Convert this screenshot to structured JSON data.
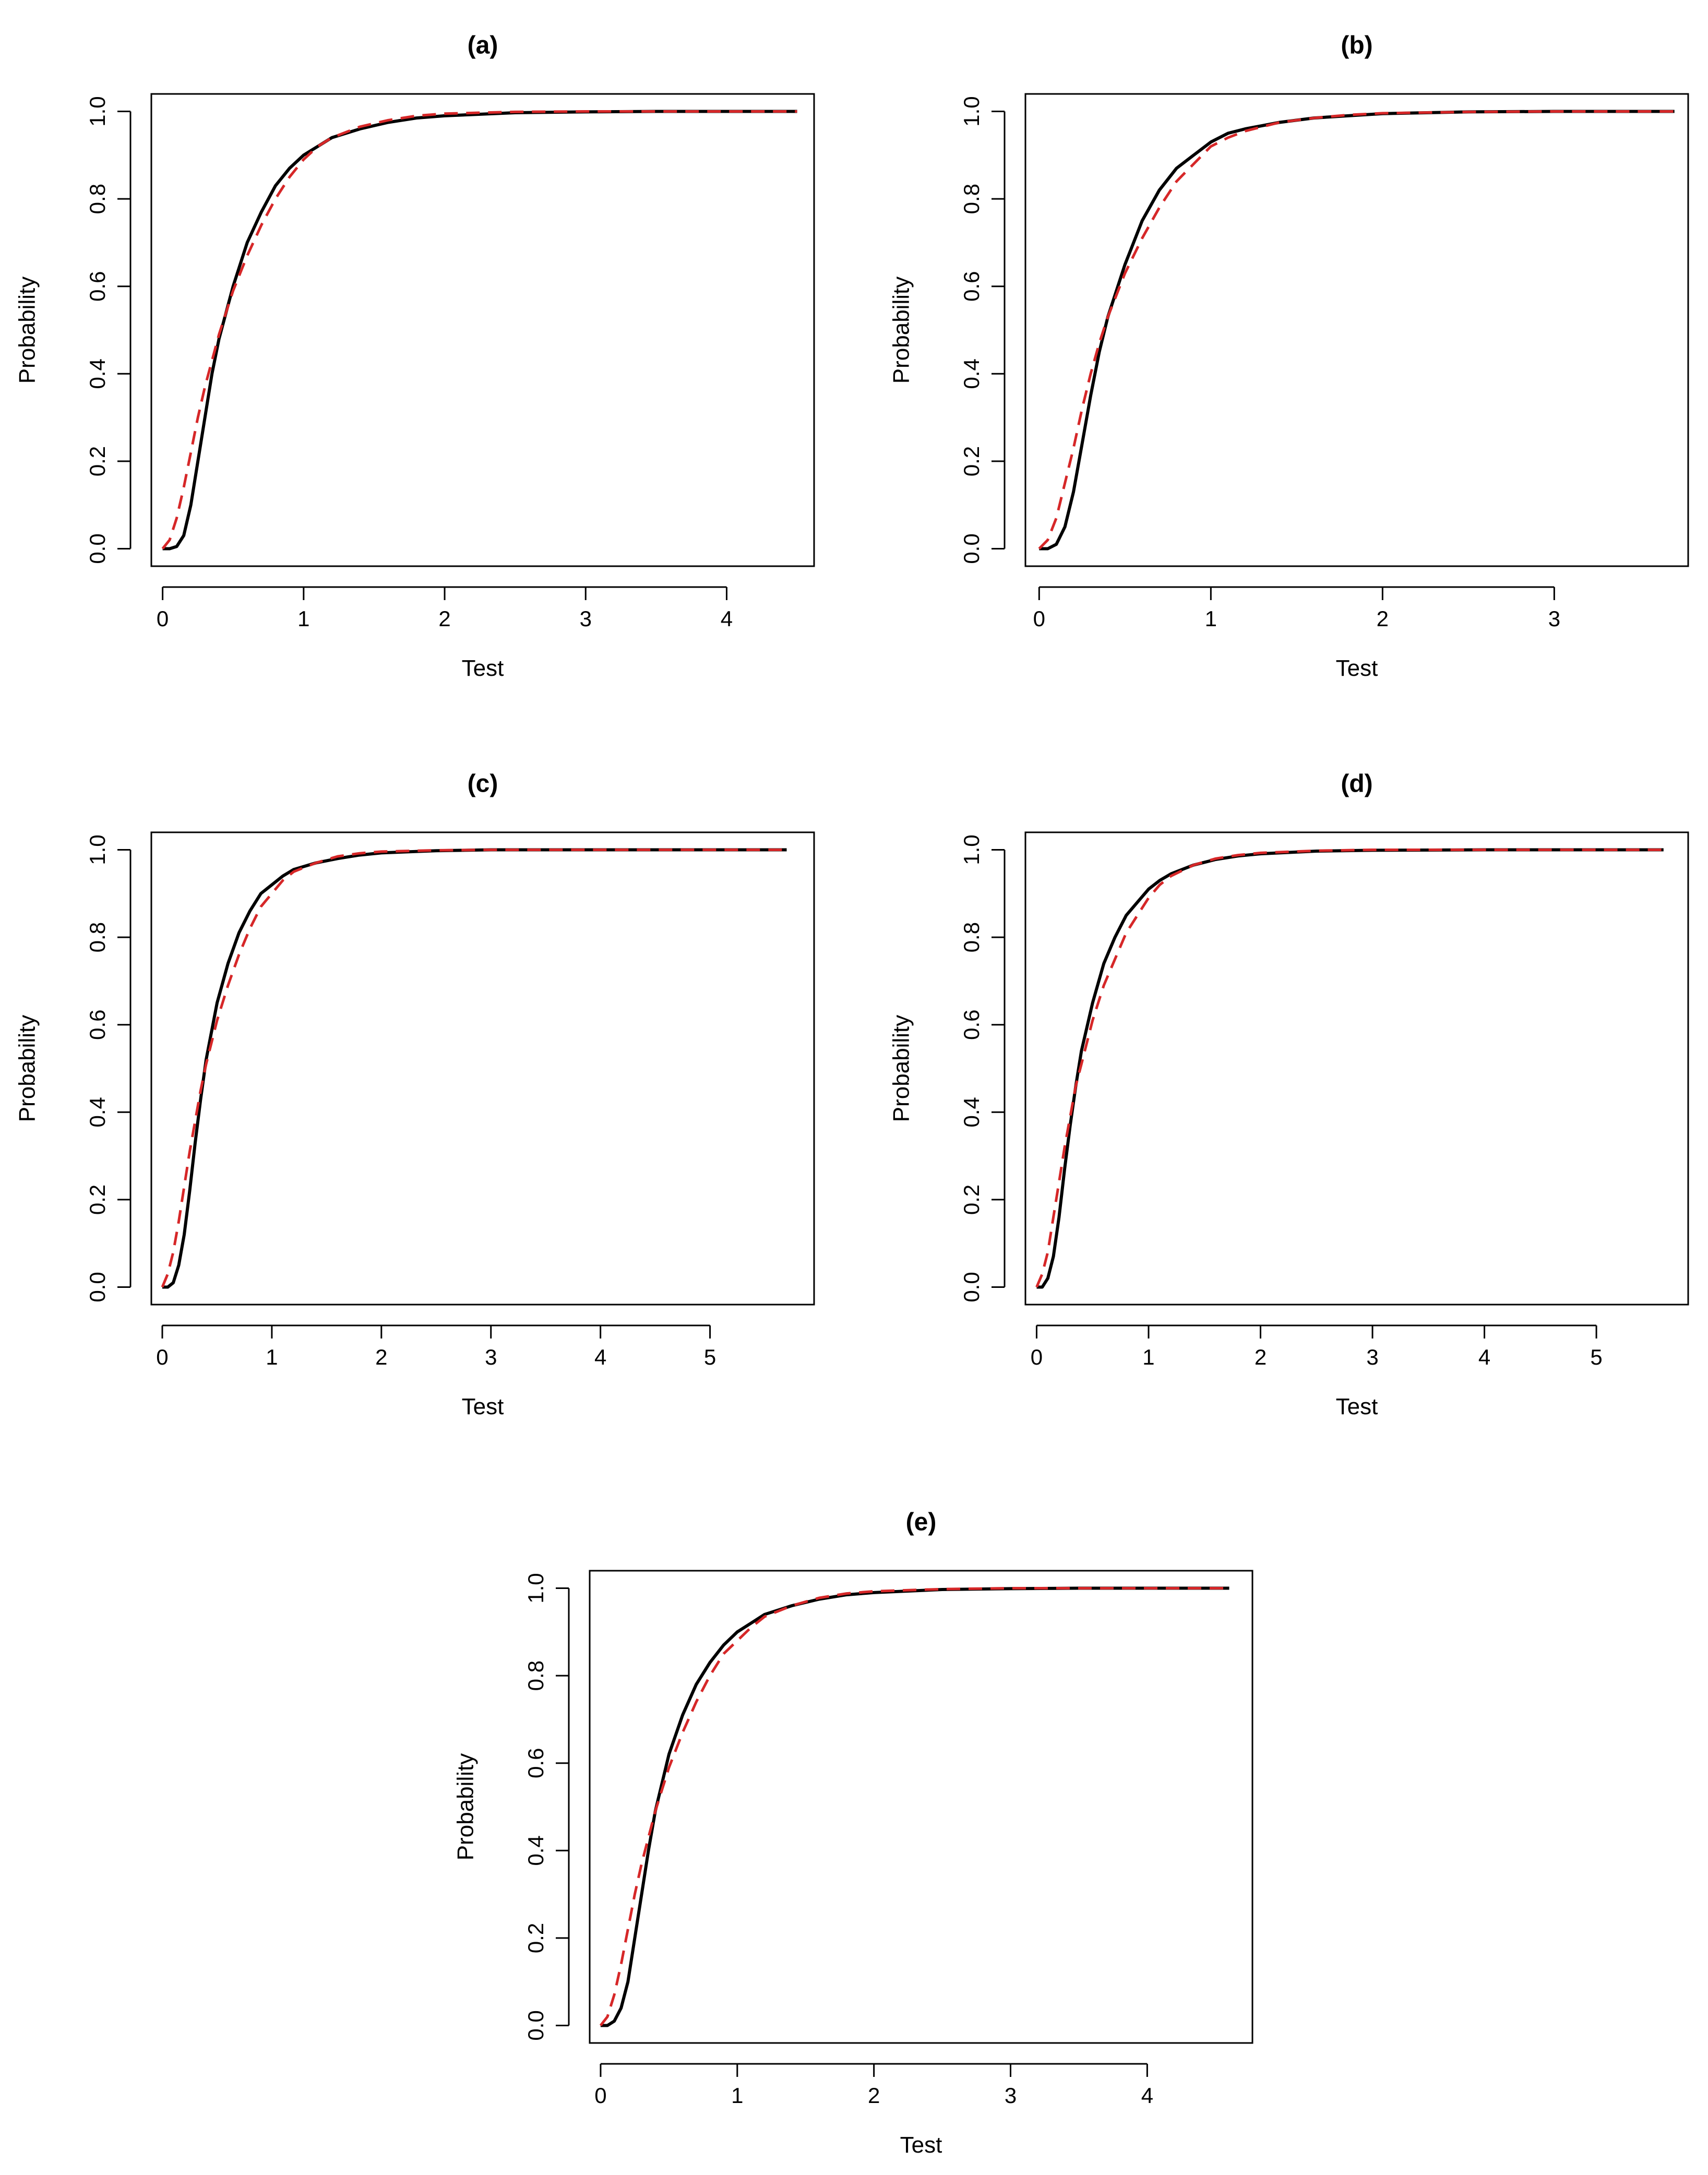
{
  "figure": {
    "colors": {
      "empirical": "#000000",
      "fitted": "#d62728"
    }
  },
  "chart_data": [
    {
      "type": "line",
      "title": "(a)",
      "xlabel": "Test",
      "ylabel": "Probability",
      "xlim": [
        -0.08,
        4.62
      ],
      "ylim": [
        -0.04,
        1.04
      ],
      "xticks": [
        0,
        1,
        2,
        3,
        4
      ],
      "yticks": [
        0.0,
        0.2,
        0.4,
        0.6,
        0.8,
        1.0
      ],
      "grid": false,
      "series": [
        {
          "style": "solid",
          "color": "#000000",
          "x": [
            0,
            0.05,
            0.1,
            0.15,
            0.2,
            0.25,
            0.3,
            0.35,
            0.4,
            0.5,
            0.6,
            0.7,
            0.8,
            0.9,
            1.0,
            1.1,
            1.2,
            1.4,
            1.6,
            1.8,
            2.0,
            2.5,
            3.0,
            3.5,
            4.0,
            4.5
          ],
          "y": [
            0.0,
            0.0,
            0.005,
            0.03,
            0.1,
            0.2,
            0.3,
            0.4,
            0.48,
            0.6,
            0.7,
            0.77,
            0.83,
            0.87,
            0.9,
            0.92,
            0.94,
            0.96,
            0.975,
            0.985,
            0.99,
            0.997,
            0.999,
            1.0,
            1.0,
            1.0
          ]
        },
        {
          "style": "dashed",
          "color": "#d62728",
          "x": [
            0,
            0.05,
            0.1,
            0.15,
            0.2,
            0.25,
            0.3,
            0.35,
            0.4,
            0.5,
            0.6,
            0.7,
            0.8,
            0.9,
            1.0,
            1.1,
            1.2,
            1.4,
            1.6,
            1.8,
            2.0,
            2.5,
            3.0,
            3.5,
            4.0,
            4.5
          ],
          "y": [
            0.0,
            0.02,
            0.07,
            0.14,
            0.22,
            0.3,
            0.37,
            0.43,
            0.49,
            0.59,
            0.67,
            0.74,
            0.8,
            0.85,
            0.89,
            0.92,
            0.94,
            0.965,
            0.98,
            0.99,
            0.995,
            0.999,
            1.0,
            1.0,
            1.0,
            1.0
          ]
        }
      ]
    },
    {
      "type": "line",
      "title": "(b)",
      "xlabel": "Test",
      "ylabel": "Probability",
      "xlim": [
        -0.08,
        3.78
      ],
      "ylim": [
        -0.04,
        1.04
      ],
      "xticks": [
        0,
        1,
        2,
        3
      ],
      "yticks": [
        0.0,
        0.2,
        0.4,
        0.6,
        0.8,
        1.0
      ],
      "grid": false,
      "series": [
        {
          "style": "solid",
          "color": "#000000",
          "x": [
            0,
            0.05,
            0.1,
            0.15,
            0.2,
            0.25,
            0.3,
            0.35,
            0.4,
            0.5,
            0.6,
            0.7,
            0.8,
            0.9,
            1.0,
            1.1,
            1.2,
            1.4,
            1.6,
            1.8,
            2.0,
            2.5,
            3.0,
            3.5,
            3.7
          ],
          "y": [
            0.0,
            0.0,
            0.01,
            0.05,
            0.13,
            0.24,
            0.35,
            0.45,
            0.53,
            0.65,
            0.75,
            0.82,
            0.87,
            0.9,
            0.93,
            0.95,
            0.96,
            0.975,
            0.985,
            0.99,
            0.995,
            0.999,
            1.0,
            1.0,
            1.0
          ]
        },
        {
          "style": "dashed",
          "color": "#d62728",
          "x": [
            0,
            0.05,
            0.1,
            0.15,
            0.2,
            0.25,
            0.3,
            0.35,
            0.4,
            0.5,
            0.6,
            0.7,
            0.8,
            0.9,
            1.0,
            1.1,
            1.2,
            1.4,
            1.6,
            1.8,
            2.0,
            2.5,
            3.0,
            3.5,
            3.7
          ],
          "y": [
            0.0,
            0.02,
            0.07,
            0.15,
            0.23,
            0.32,
            0.4,
            0.47,
            0.53,
            0.63,
            0.71,
            0.78,
            0.84,
            0.88,
            0.92,
            0.94,
            0.955,
            0.975,
            0.985,
            0.992,
            0.996,
            0.999,
            1.0,
            1.0,
            1.0
          ]
        }
      ]
    },
    {
      "type": "line",
      "title": "(c)",
      "xlabel": "Test",
      "ylabel": "Probability",
      "xlim": [
        -0.1,
        5.95
      ],
      "ylim": [
        -0.04,
        1.04
      ],
      "xticks": [
        0,
        1,
        2,
        3,
        4,
        5
      ],
      "yticks": [
        0.0,
        0.2,
        0.4,
        0.6,
        0.8,
        1.0
      ],
      "grid": false,
      "series": [
        {
          "style": "solid",
          "color": "#000000",
          "x": [
            0,
            0.05,
            0.1,
            0.15,
            0.2,
            0.25,
            0.3,
            0.35,
            0.4,
            0.5,
            0.6,
            0.7,
            0.8,
            0.9,
            1.0,
            1.1,
            1.2,
            1.4,
            1.6,
            1.8,
            2.0,
            2.5,
            3.0,
            4.0,
            5.0,
            5.7
          ],
          "y": [
            0.0,
            0.0,
            0.01,
            0.05,
            0.12,
            0.22,
            0.33,
            0.43,
            0.52,
            0.65,
            0.74,
            0.81,
            0.86,
            0.9,
            0.92,
            0.94,
            0.955,
            0.97,
            0.98,
            0.988,
            0.993,
            0.998,
            1.0,
            1.0,
            1.0,
            1.0
          ]
        },
        {
          "style": "dashed",
          "color": "#d62728",
          "x": [
            0,
            0.05,
            0.1,
            0.15,
            0.2,
            0.25,
            0.3,
            0.35,
            0.4,
            0.5,
            0.6,
            0.7,
            0.8,
            0.9,
            1.0,
            1.1,
            1.2,
            1.4,
            1.6,
            1.8,
            2.0,
            2.5,
            3.0,
            4.0,
            5.0,
            5.7
          ],
          "y": [
            0.0,
            0.03,
            0.08,
            0.15,
            0.23,
            0.31,
            0.38,
            0.45,
            0.51,
            0.61,
            0.69,
            0.76,
            0.82,
            0.87,
            0.9,
            0.93,
            0.95,
            0.97,
            0.985,
            0.992,
            0.996,
            0.999,
            1.0,
            1.0,
            1.0,
            1.0
          ]
        }
      ]
    },
    {
      "type": "line",
      "title": "(d)",
      "xlabel": "Test",
      "ylabel": "Probability",
      "xlim": [
        -0.1,
        5.82
      ],
      "ylim": [
        -0.04,
        1.04
      ],
      "xticks": [
        0,
        1,
        2,
        3,
        4,
        5
      ],
      "yticks": [
        0.0,
        0.2,
        0.4,
        0.6,
        0.8,
        1.0
      ],
      "grid": false,
      "series": [
        {
          "style": "solid",
          "color": "#000000",
          "x": [
            0,
            0.05,
            0.1,
            0.15,
            0.2,
            0.25,
            0.3,
            0.35,
            0.4,
            0.5,
            0.6,
            0.7,
            0.8,
            0.9,
            1.0,
            1.1,
            1.2,
            1.4,
            1.6,
            1.8,
            2.0,
            2.5,
            3.0,
            4.0,
            5.0,
            5.6
          ],
          "y": [
            0.0,
            0.0,
            0.02,
            0.07,
            0.16,
            0.27,
            0.37,
            0.46,
            0.54,
            0.65,
            0.74,
            0.8,
            0.85,
            0.88,
            0.91,
            0.93,
            0.945,
            0.965,
            0.978,
            0.986,
            0.991,
            0.997,
            0.999,
            1.0,
            1.0,
            1.0
          ]
        },
        {
          "style": "dashed",
          "color": "#d62728",
          "x": [
            0,
            0.05,
            0.1,
            0.15,
            0.2,
            0.25,
            0.3,
            0.35,
            0.4,
            0.5,
            0.6,
            0.7,
            0.8,
            0.9,
            1.0,
            1.1,
            1.2,
            1.4,
            1.6,
            1.8,
            2.0,
            2.5,
            3.0,
            4.0,
            5.0,
            5.6
          ],
          "y": [
            0.0,
            0.03,
            0.08,
            0.16,
            0.24,
            0.32,
            0.39,
            0.46,
            0.51,
            0.61,
            0.69,
            0.75,
            0.81,
            0.85,
            0.89,
            0.92,
            0.94,
            0.965,
            0.98,
            0.988,
            0.993,
            0.998,
            1.0,
            1.0,
            1.0,
            1.0
          ]
        }
      ]
    },
    {
      "type": "line",
      "title": "(e)",
      "xlabel": "Test",
      "ylabel": "Probability",
      "xlim": [
        -0.08,
        4.77
      ],
      "ylim": [
        -0.04,
        1.04
      ],
      "xticks": [
        0,
        1,
        2,
        3,
        4
      ],
      "yticks": [
        0.0,
        0.2,
        0.4,
        0.6,
        0.8,
        1.0
      ],
      "grid": false,
      "series": [
        {
          "style": "solid",
          "color": "#000000",
          "x": [
            0,
            0.05,
            0.1,
            0.15,
            0.2,
            0.25,
            0.3,
            0.35,
            0.4,
            0.5,
            0.6,
            0.7,
            0.8,
            0.9,
            1.0,
            1.1,
            1.2,
            1.4,
            1.6,
            1.8,
            2.0,
            2.5,
            3.0,
            3.5,
            4.0,
            4.6
          ],
          "y": [
            0.0,
            0.0,
            0.01,
            0.04,
            0.1,
            0.2,
            0.3,
            0.4,
            0.49,
            0.62,
            0.71,
            0.78,
            0.83,
            0.87,
            0.9,
            0.92,
            0.94,
            0.96,
            0.975,
            0.985,
            0.99,
            0.997,
            0.999,
            1.0,
            1.0,
            1.0
          ]
        },
        {
          "style": "dashed",
          "color": "#d62728",
          "x": [
            0,
            0.05,
            0.1,
            0.15,
            0.2,
            0.25,
            0.3,
            0.35,
            0.4,
            0.5,
            0.6,
            0.7,
            0.8,
            0.9,
            1.0,
            1.1,
            1.2,
            1.4,
            1.6,
            1.8,
            2.0,
            2.5,
            3.0,
            3.5,
            4.0,
            4.6
          ],
          "y": [
            0.0,
            0.02,
            0.07,
            0.14,
            0.22,
            0.3,
            0.37,
            0.43,
            0.49,
            0.59,
            0.67,
            0.74,
            0.8,
            0.85,
            0.88,
            0.91,
            0.935,
            0.96,
            0.978,
            0.988,
            0.993,
            0.998,
            1.0,
            1.0,
            1.0,
            1.0
          ]
        }
      ]
    }
  ]
}
